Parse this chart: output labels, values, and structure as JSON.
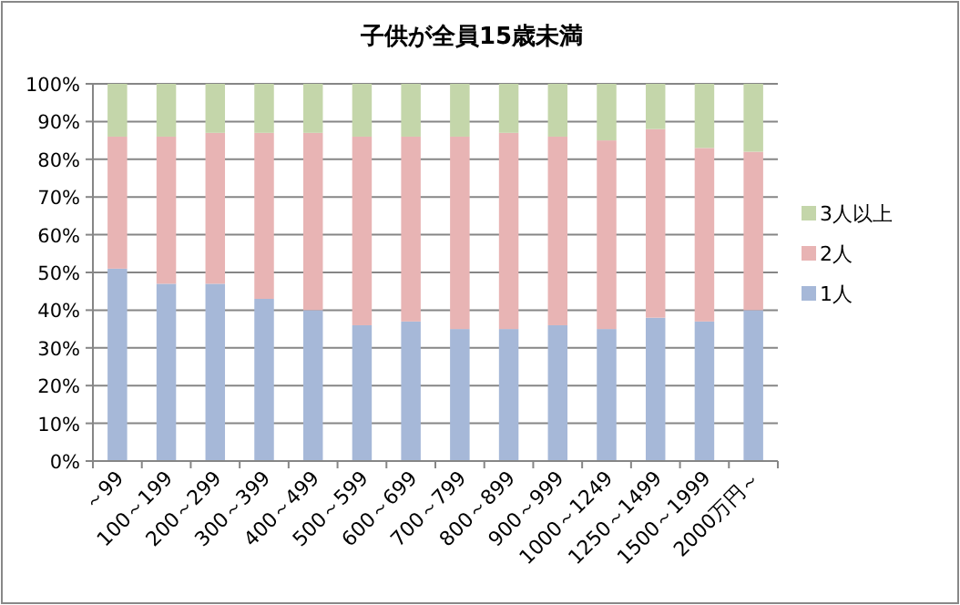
{
  "chart_data": {
    "type": "bar",
    "title": "子供が全員15歳未満",
    "stacked": true,
    "grid": "y",
    "legend": "right",
    "categories": [
      "～99",
      "100～199",
      "200～299",
      "300～399",
      "400～499",
      "500～599",
      "600～699",
      "700～799",
      "800～899",
      "900～999",
      "1000～1249",
      "1250～1499",
      "1500～1999",
      "2000万円～"
    ],
    "ylim": [
      0,
      100
    ],
    "yticks": [
      {
        "value": 0,
        "label": "0%"
      },
      {
        "value": 10,
        "label": "10%"
      },
      {
        "value": 20,
        "label": "20%"
      },
      {
        "value": 30,
        "label": "30%"
      },
      {
        "value": 40,
        "label": "40%"
      },
      {
        "value": 50,
        "label": "50%"
      },
      {
        "value": 60,
        "label": "60%"
      },
      {
        "value": 70,
        "label": "70%"
      },
      {
        "value": 80,
        "label": "80%"
      },
      {
        "value": 90,
        "label": "90%"
      },
      {
        "value": 100,
        "label": "100%"
      }
    ],
    "series": [
      {
        "name": "1人",
        "color": "#a6b8d8",
        "values": [
          51,
          47,
          47,
          43,
          40,
          36,
          37,
          35,
          35,
          36,
          35,
          38,
          37,
          40
        ]
      },
      {
        "name": "2人",
        "color": "#e8b4b4",
        "values": [
          35,
          39,
          40,
          44,
          47,
          50,
          49,
          51,
          52,
          50,
          50,
          50,
          46,
          42
        ]
      },
      {
        "name": "3人以上",
        "color": "#c4d6aa",
        "values": [
          14,
          14,
          13,
          13,
          13,
          14,
          14,
          14,
          13,
          14,
          15,
          12,
          17,
          18
        ]
      }
    ]
  }
}
